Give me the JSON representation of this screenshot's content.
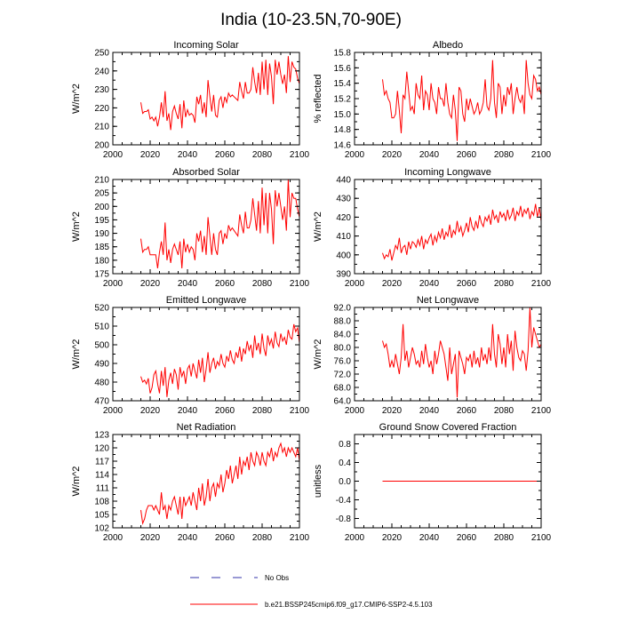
{
  "title": "India (10-23.5N,70-90E)",
  "legend": {
    "obs_label": "No Obs",
    "model_label": "b.e21.BSSP245cmip6.f09_g17.CMIP6-SSP2-4.5.103",
    "obs_color": "#3333aa",
    "model_color": "#ff0000"
  },
  "chart_data": [
    {
      "type": "line",
      "title": "Incoming Solar",
      "ylabel": "W/m^2",
      "xlabel": "",
      "xlim": [
        2000,
        2100
      ],
      "ylim": [
        200,
        250
      ],
      "xticks": [
        "2000",
        "2020",
        "2040",
        "2060",
        "2080",
        "2100"
      ],
      "yticks": [
        "200",
        "210",
        "220",
        "230",
        "240",
        "250"
      ],
      "series": [
        {
          "name": "b.e21.BSSP245cmip6.f09_g17.CMIP6-SSP2-4.5.103",
          "start": 2015,
          "values": [
            223,
            217,
            218,
            218,
            219,
            214,
            215,
            213,
            215,
            210,
            215,
            223,
            215,
            229,
            213,
            217,
            208,
            218,
            221,
            217,
            214,
            222,
            209,
            224,
            215,
            219,
            216,
            217,
            216,
            212,
            226,
            222,
            227,
            217,
            223,
            215,
            235,
            226,
            218,
            227,
            216,
            215,
            224,
            226,
            220,
            226,
            223,
            228,
            226,
            227,
            226,
            225,
            224,
            234,
            229,
            225,
            234,
            228,
            228,
            230,
            242,
            234,
            228,
            239,
            227,
            245,
            230,
            246,
            227,
            244,
            237,
            222,
            246,
            238,
            245,
            238,
            233,
            238,
            228,
            248,
            234,
            245,
            242,
            241,
            236,
            233,
            234
          ]
        }
      ]
    },
    {
      "type": "line",
      "title": "Albedo",
      "ylabel": "% reflected",
      "xlabel": "",
      "xlim": [
        2000,
        2100
      ],
      "ylim": [
        14.6,
        15.8
      ],
      "xticks": [
        "2000",
        "2020",
        "2040",
        "2060",
        "2080",
        "2100"
      ],
      "yticks": [
        "14.6",
        "14.8",
        "15.0",
        "15.2",
        "15.4",
        "15.6",
        "15.8"
      ],
      "series": [
        {
          "name": "b.e21.BSSP245cmip6.f09_g17.CMIP6-SSP2-4.5.103",
          "start": 2015,
          "values": [
            15.45,
            15.25,
            15.3,
            15.2,
            15.15,
            14.95,
            14.95,
            15.0,
            15.3,
            15.05,
            14.75,
            15.25,
            15.2,
            15.55,
            15.3,
            15.05,
            15.1,
            15.0,
            15.4,
            15.25,
            15.2,
            15.5,
            15.05,
            15.3,
            15.25,
            15.05,
            15.4,
            15.2,
            15.15,
            15.0,
            15.35,
            15.2,
            15.2,
            15.1,
            15.4,
            15.15,
            15.0,
            14.95,
            15.25,
            15.05,
            14.65,
            15.35,
            15.3,
            15.0,
            14.9,
            15.2,
            15.05,
            15.2,
            15.1,
            15.0,
            15.05,
            15.15,
            15.0,
            15.05,
            15.15,
            15.45,
            15.1,
            15.05,
            15.2,
            15.7,
            15.15,
            14.95,
            15.4,
            15.35,
            15.0,
            15.25,
            15.1,
            15.35,
            15.25,
            15.4,
            15.0,
            15.2,
            15.35,
            15.2,
            15.15,
            15.25,
            15.0,
            15.7,
            15.4,
            15.25,
            15.2,
            15.5,
            15.45,
            15.3,
            15.35,
            15.25,
            15.2
          ]
        }
      ]
    },
    {
      "type": "line",
      "title": "Absorbed Solar",
      "ylabel": "W/m^2",
      "xlabel": "",
      "xlim": [
        2000,
        2100
      ],
      "ylim": [
        175,
        210
      ],
      "xticks": [
        "2000",
        "2020",
        "2040",
        "2060",
        "2080",
        "2100"
      ],
      "yticks": [
        "175",
        "180",
        "185",
        "190",
        "195",
        "200",
        "205",
        "210"
      ],
      "series": [
        {
          "name": "b.e21.BSSP245cmip6.f09_g17.CMIP6-SSP2-4.5.103",
          "start": 2015,
          "values": [
            188,
            183,
            184,
            184,
            185,
            182,
            182,
            182,
            182,
            177,
            183,
            187,
            182,
            194,
            180,
            184,
            179,
            184,
            186,
            184,
            182,
            187,
            177,
            188,
            183,
            186,
            183,
            185,
            184,
            180,
            190,
            187,
            191,
            183,
            189,
            182,
            196,
            189,
            182,
            190,
            184,
            182,
            190,
            191,
            186,
            190,
            188,
            193,
            191,
            192,
            191,
            190,
            189,
            197,
            193,
            190,
            198,
            192,
            192,
            195,
            203,
            197,
            191,
            202,
            190,
            207,
            193,
            205,
            190,
            205,
            199,
            186,
            206,
            200,
            205,
            200,
            195,
            200,
            191,
            210,
            196,
            205,
            203,
            203,
            199,
            196,
            198
          ]
        }
      ]
    },
    {
      "type": "line",
      "title": "Incoming Longwave",
      "ylabel": "W/m^2",
      "xlabel": "",
      "xlim": [
        2000,
        2100
      ],
      "ylim": [
        390,
        440
      ],
      "xticks": [
        "2000",
        "2020",
        "2040",
        "2060",
        "2080",
        "2100"
      ],
      "yticks": [
        "390",
        "400",
        "410",
        "420",
        "430",
        "440"
      ],
      "series": [
        {
          "name": "b.e21.BSSP245cmip6.f09_g17.CMIP6-SSP2-4.5.103",
          "start": 2015,
          "values": [
            401,
            398,
            400,
            399,
            403,
            397,
            401,
            405,
            403,
            409,
            401,
            404,
            405,
            400,
            407,
            403,
            407,
            406,
            404,
            408,
            405,
            410,
            403,
            408,
            406,
            409,
            411,
            405,
            410,
            407,
            412,
            409,
            414,
            408,
            412,
            410,
            416,
            409,
            413,
            411,
            418,
            412,
            415,
            410,
            413,
            417,
            412,
            420,
            415,
            413,
            418,
            414,
            421,
            417,
            415,
            420,
            418,
            421,
            416,
            424,
            419,
            421,
            417,
            423,
            420,
            422,
            418,
            424,
            419,
            421,
            425,
            418,
            423,
            421,
            426,
            420,
            424,
            422,
            425,
            419,
            423,
            421,
            427,
            420,
            425,
            418,
            428
          ]
        }
      ]
    },
    {
      "type": "line",
      "title": "Emitted Longwave",
      "ylabel": "W/m^2",
      "xlabel": "",
      "xlim": [
        2000,
        2100
      ],
      "ylim": [
        470,
        520
      ],
      "xticks": [
        "2000",
        "2020",
        "2040",
        "2060",
        "2080",
        "2100"
      ],
      "yticks": [
        "470",
        "480",
        "490",
        "500",
        "510",
        "520"
      ],
      "series": [
        {
          "name": "b.e21.BSSP245cmip6.f09_g17.CMIP6-SSP2-4.5.103",
          "start": 2015,
          "values": [
            483,
            480,
            481,
            479,
            482,
            474,
            477,
            484,
            486,
            479,
            474,
            486,
            478,
            488,
            472,
            481,
            485,
            479,
            487,
            484,
            476,
            488,
            483,
            486,
            479,
            487,
            489,
            483,
            490,
            486,
            482,
            492,
            485,
            493,
            480,
            487,
            496,
            485,
            490,
            493,
            487,
            491,
            489,
            495,
            490,
            488,
            494,
            491,
            497,
            492,
            490,
            496,
            493,
            499,
            491,
            498,
            495,
            502,
            497,
            500,
            493,
            505,
            497,
            501,
            495,
            506,
            498,
            494,
            505,
            500,
            503,
            498,
            507,
            501,
            499,
            506,
            502,
            504,
            500,
            508,
            504,
            503,
            511,
            507,
            509,
            501,
            499
          ]
        }
      ]
    },
    {
      "type": "line",
      "title": "Net Longwave",
      "ylabel": "W/m^2",
      "xlabel": "",
      "xlim": [
        2000,
        2100
      ],
      "ylim": [
        64,
        92
      ],
      "xticks": [
        "2000",
        "2020",
        "2040",
        "2060",
        "2080",
        "2100"
      ],
      "yticks": [
        "64.0",
        "68.0",
        "72.0",
        "76.0",
        "80.0",
        "84.0",
        "88.0",
        "92.0"
      ],
      "series": [
        {
          "name": "b.e21.BSSP245cmip6.f09_g17.CMIP6-SSP2-4.5.103",
          "start": 2015,
          "values": [
            82,
            80,
            81,
            78,
            74,
            76,
            74,
            78,
            75,
            72,
            77,
            87,
            76,
            79,
            74,
            77,
            80,
            78,
            75,
            76,
            74,
            79,
            75,
            81,
            77,
            74,
            76,
            72,
            79,
            75,
            78,
            82,
            80,
            78,
            74,
            70,
            80,
            72,
            75,
            78,
            65,
            79,
            77,
            75,
            72,
            77,
            76,
            78,
            74,
            79,
            75,
            77,
            74,
            80,
            76,
            78,
            75,
            80,
            76,
            87,
            78,
            74,
            84,
            81,
            75,
            80,
            74,
            84,
            78,
            82,
            73,
            85,
            80,
            77,
            76,
            79,
            78,
            73,
            79,
            92,
            80,
            86,
            84,
            82,
            80,
            81,
            79
          ]
        }
      ]
    },
    {
      "type": "line",
      "title": "Net Radiation",
      "ylabel": "W/m^2",
      "xlabel": "",
      "xlim": [
        2000,
        2100
      ],
      "ylim": [
        102,
        123
      ],
      "xticks": [
        "2000",
        "2020",
        "2040",
        "2060",
        "2080",
        "2100"
      ],
      "yticks": [
        "102",
        "105",
        "108",
        "111",
        "114",
        "117",
        "120",
        "123"
      ],
      "series": [
        {
          "name": "b.e21.BSSP245cmip6.f09_g17.CMIP6-SSP2-4.5.103",
          "start": 2015,
          "values": [
            106,
            103,
            104,
            106,
            107,
            107,
            107,
            106,
            107,
            106,
            105,
            110,
            106,
            107,
            104,
            107,
            106,
            108,
            109,
            107,
            105,
            109,
            104,
            109,
            107,
            108,
            109,
            107,
            110,
            108,
            106,
            111,
            108,
            112,
            107,
            109,
            113,
            108,
            111,
            112,
            109,
            112,
            111,
            114,
            110,
            112,
            115,
            113,
            116,
            112,
            114,
            116,
            113,
            118,
            114,
            117,
            116,
            118,
            115,
            119,
            117,
            116,
            119,
            118,
            116,
            119,
            117,
            116,
            119,
            118,
            120,
            117,
            119,
            118,
            120,
            121,
            119,
            120,
            118,
            120,
            119,
            120,
            119,
            118,
            120,
            117,
            119
          ]
        }
      ]
    },
    {
      "type": "line",
      "title": "Ground Snow Covered Fraction",
      "ylabel": "unitless",
      "xlabel": "",
      "xlim": [
        2000,
        2100
      ],
      "ylim": [
        -1.0,
        1.0
      ],
      "xticks": [
        "2000",
        "2020",
        "2040",
        "2060",
        "2080",
        "2100"
      ],
      "yticks": [
        "-0.8",
        "-0.4",
        "0.0",
        "0.4",
        "0.8"
      ],
      "ytick_values": [
        -0.8,
        -0.4,
        0.0,
        0.4,
        0.8
      ],
      "series": [
        {
          "name": "b.e21.BSSP245cmip6.f09_g17.CMIP6-SSP2-4.5.103",
          "start": 2015,
          "values": [
            0,
            0,
            0,
            0,
            0,
            0,
            0,
            0,
            0,
            0,
            0,
            0,
            0,
            0,
            0,
            0,
            0,
            0,
            0,
            0,
            0,
            0,
            0,
            0,
            0,
            0,
            0,
            0,
            0,
            0,
            0,
            0,
            0,
            0,
            0,
            0,
            0,
            0,
            0,
            0,
            0,
            0,
            0,
            0,
            0,
            0,
            0,
            0,
            0,
            0,
            0,
            0,
            0,
            0,
            0,
            0,
            0,
            0,
            0,
            0,
            0,
            0,
            0,
            0,
            0,
            0,
            0,
            0,
            0,
            0,
            0,
            0,
            0,
            0,
            0,
            0,
            0,
            0,
            0,
            0,
            0,
            0,
            0,
            0,
            0,
            0,
            0
          ]
        }
      ]
    }
  ]
}
